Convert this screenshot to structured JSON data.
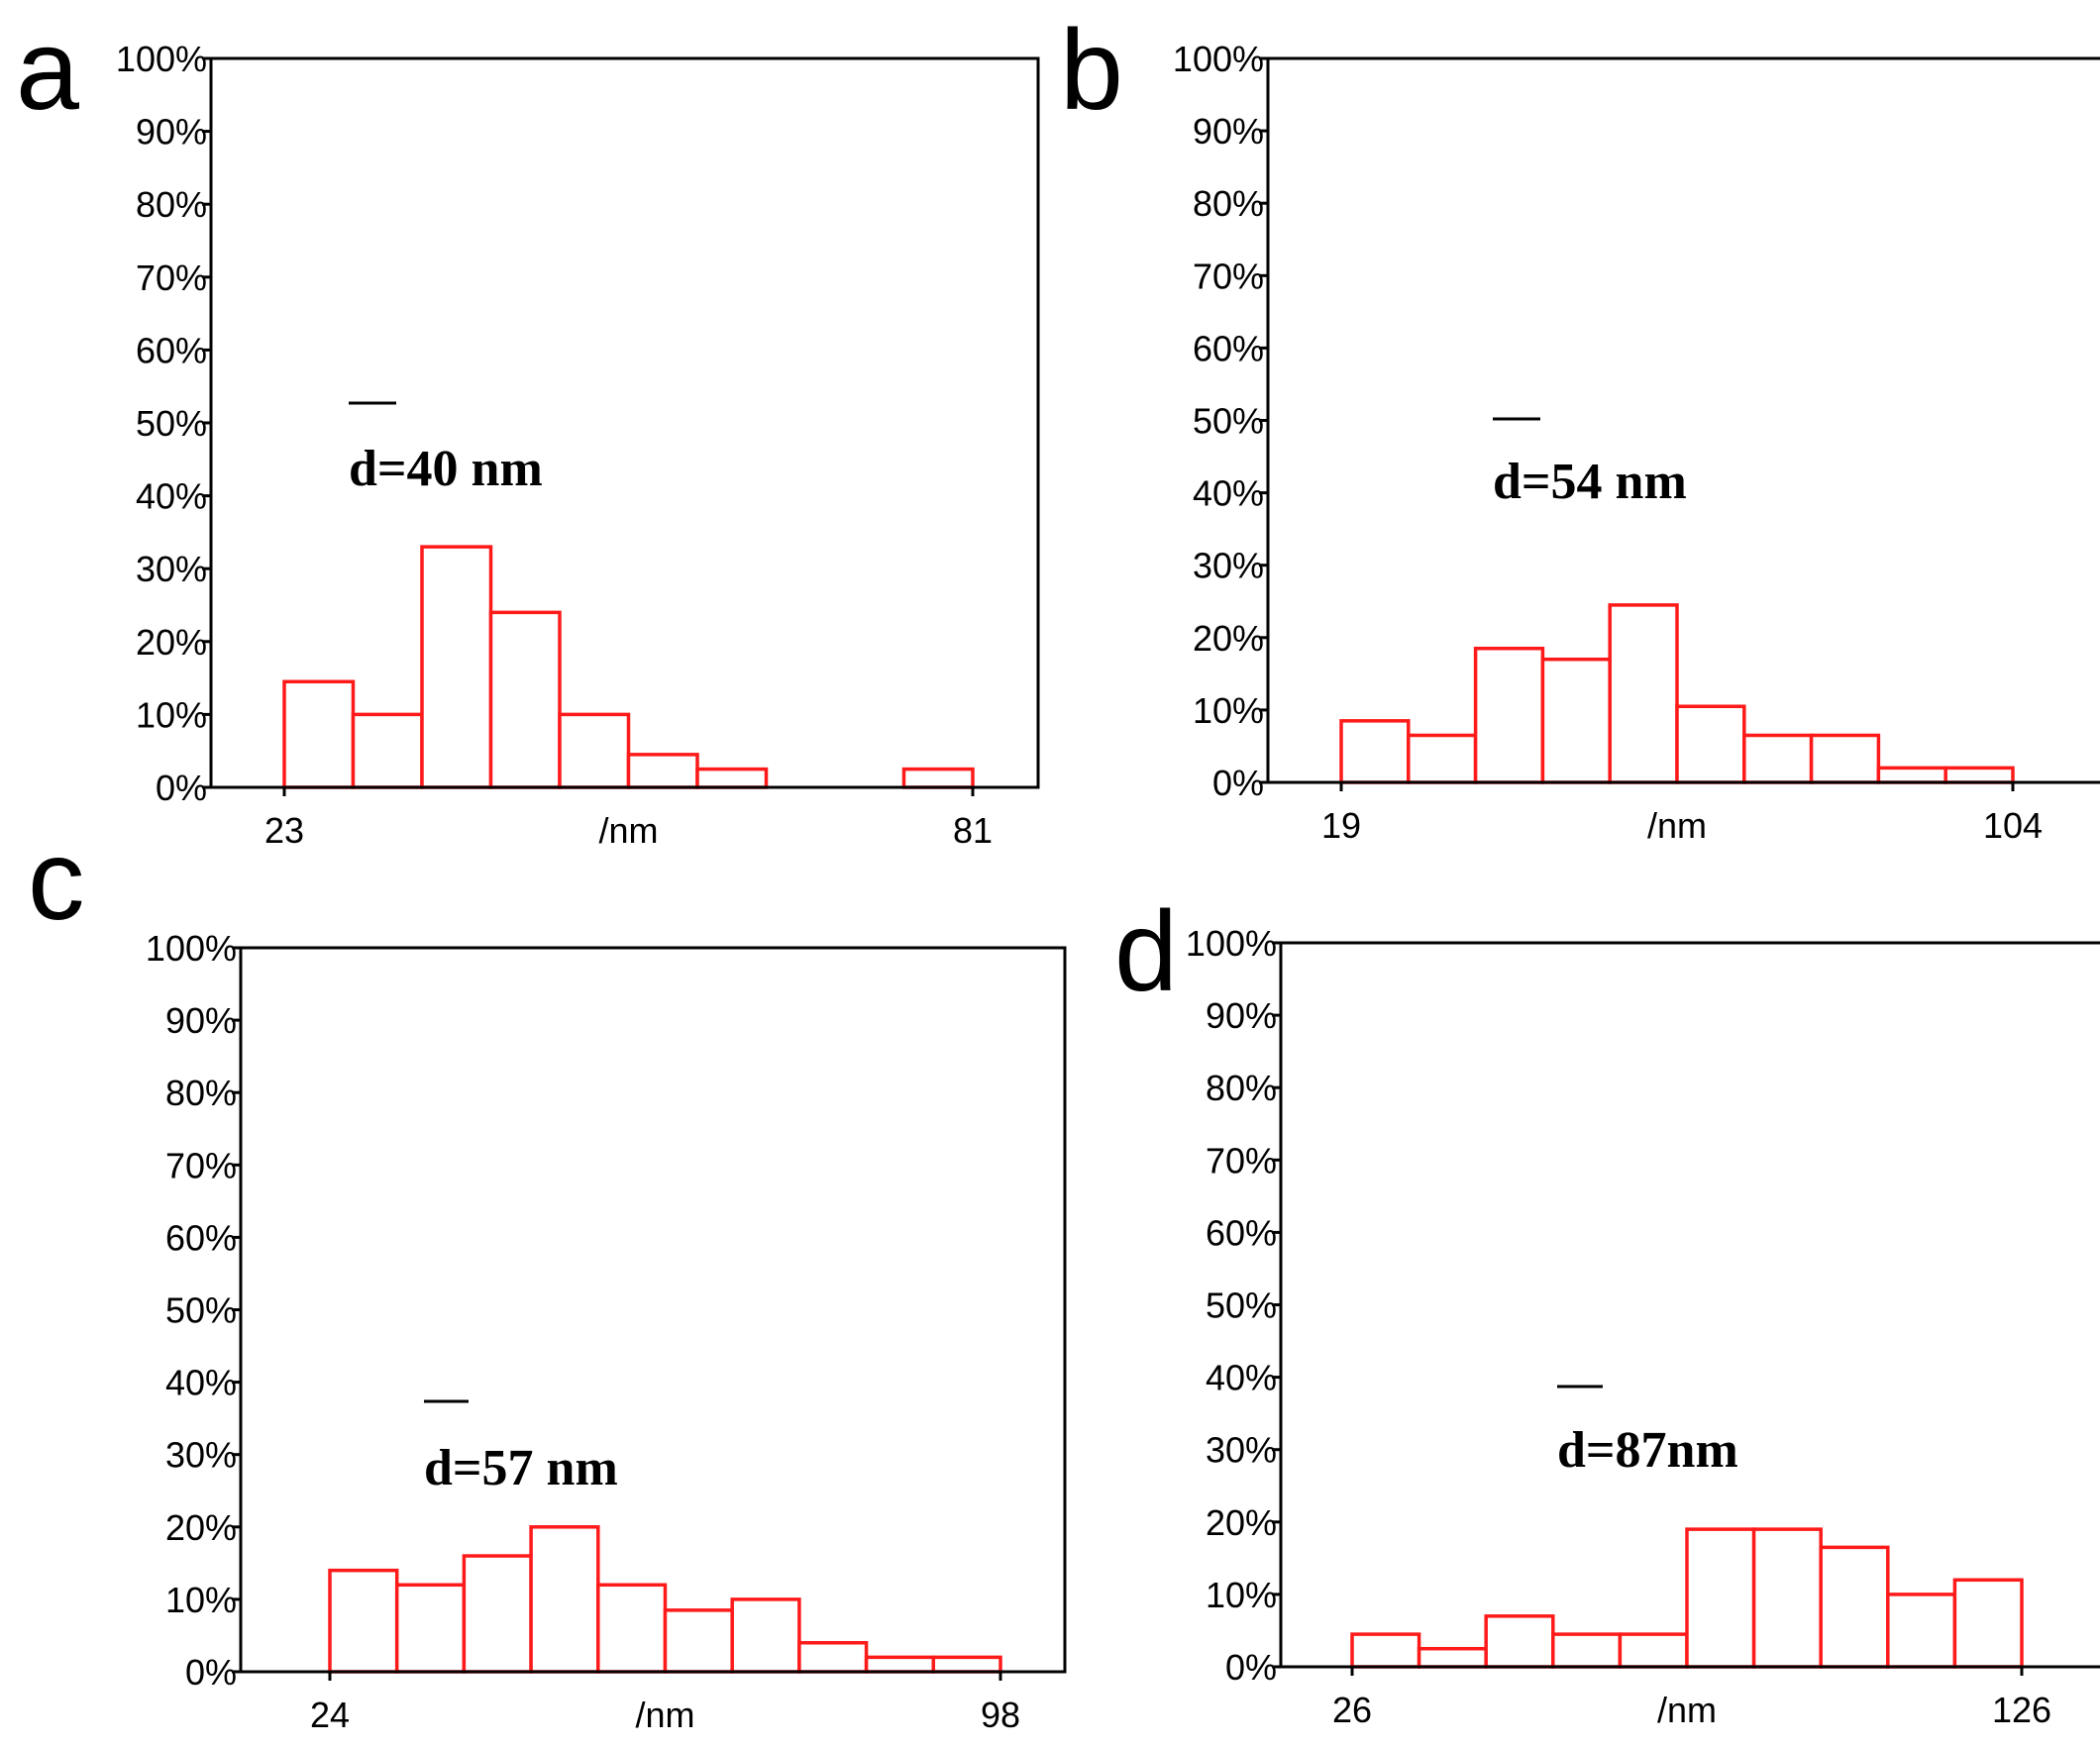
{
  "chart_data": [
    {
      "panel_label": "a",
      "type": "bar",
      "title": "",
      "xlabel": "/nm",
      "ylabel": "",
      "ylim": [
        0,
        100
      ],
      "yticks": [
        "0%",
        "10%",
        "20%",
        "30%",
        "40%",
        "50%",
        "60%",
        "70%",
        "80%",
        "90%",
        "100%"
      ],
      "xtick_min": "23",
      "xtick_max": "81",
      "x_range": [
        23,
        81
      ],
      "bin_width": 5.8,
      "values": [
        14.5,
        10,
        33,
        24,
        10,
        4.5,
        2.5,
        0,
        0,
        2.5
      ],
      "mean_label": "d=40 nm"
    },
    {
      "panel_label": "b",
      "type": "bar",
      "title": "",
      "xlabel": "/nm",
      "ylabel": "",
      "ylim": [
        0,
        100
      ],
      "yticks": [
        "0%",
        "10%",
        "20%",
        "30%",
        "40%",
        "50%",
        "60%",
        "70%",
        "80%",
        "90%",
        "100%"
      ],
      "xtick_min": "19",
      "xtick_max": "104",
      "x_range": [
        19,
        104
      ],
      "bin_width": 8.5,
      "values": [
        8.5,
        6.5,
        18.5,
        17,
        24.5,
        10.5,
        6.5,
        6.5,
        2,
        2
      ],
      "mean_label": "d=54 nm"
    },
    {
      "panel_label": "c",
      "type": "bar",
      "title": "",
      "xlabel": "/nm",
      "ylabel": "",
      "ylim": [
        0,
        100
      ],
      "yticks": [
        "0%",
        "10%",
        "20%",
        "30%",
        "40%",
        "50%",
        "60%",
        "70%",
        "80%",
        "90%",
        "100%"
      ],
      "xtick_min": "24",
      "xtick_max": "98",
      "x_range": [
        24,
        98
      ],
      "bin_width": 7.4,
      "values": [
        14,
        12,
        16,
        20,
        12,
        8.5,
        10,
        4,
        2,
        2
      ],
      "mean_label": "d=57 nm"
    },
    {
      "panel_label": "d",
      "type": "bar",
      "title": "",
      "xlabel": "/nm",
      "ylabel": "",
      "ylim": [
        0,
        100
      ],
      "yticks": [
        "0%",
        "10%",
        "20%",
        "30%",
        "40%",
        "50%",
        "60%",
        "70%",
        "80%",
        "90%",
        "100%"
      ],
      "xtick_min": "26",
      "xtick_max": "126",
      "x_range": [
        26,
        126
      ],
      "bin_width": 10,
      "values": [
        4.5,
        2.5,
        7,
        4.5,
        4.5,
        19,
        19,
        16.5,
        10,
        12
      ],
      "mean_label": "d=87nm"
    }
  ]
}
